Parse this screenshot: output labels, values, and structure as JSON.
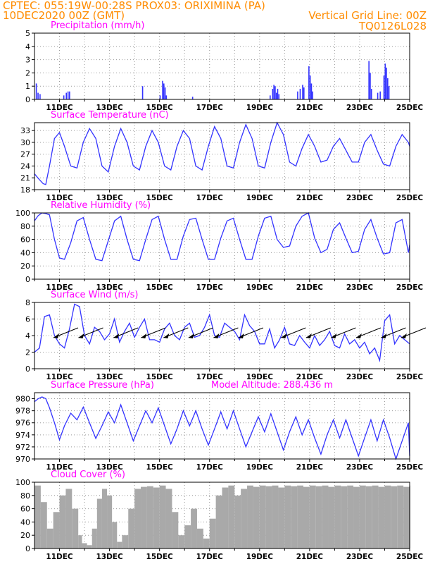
{
  "header": {
    "line1": "CPTEC:   055:19W-00:28S   PROX03: ORIXIMINA (PA)",
    "line2_left": "10DEC2020 00Z (GMT)",
    "line2_right": "Vertical Grid Line: 00Z",
    "line3_right": "TQ0126L028"
  },
  "colors": {
    "series": "#3333ff",
    "header": "#ff8c00",
    "title": "#ff00ff",
    "cloud": "#a9a9a9",
    "arrow": "#000000"
  },
  "chart_data": [
    {
      "type": "bar",
      "title": "Precipitation (mm/h)",
      "x_ticks": [
        "11DEC",
        "13DEC",
        "15DEC",
        "17DEC",
        "19DEC",
        "21DEC",
        "23DEC",
        "25DEC"
      ],
      "xlim": [
        0,
        15
      ],
      "ylim": [
        0,
        5
      ],
      "y_ticks": [
        0,
        1,
        2,
        3,
        4,
        5
      ],
      "values": [
        [
          0.05,
          1.2
        ],
        [
          0.12,
          0.5
        ],
        [
          0.2,
          0.4
        ],
        [
          1.15,
          0.3
        ],
        [
          1.25,
          0.5
        ],
        [
          1.32,
          0.6
        ],
        [
          1.38,
          0.6
        ],
        [
          4.3,
          1.0
        ],
        [
          5.0,
          0.3
        ],
        [
          5.1,
          1.4
        ],
        [
          5.15,
          1.2
        ],
        [
          5.2,
          0.9
        ],
        [
          5.25,
          0.3
        ],
        [
          6.3,
          0.2
        ],
        [
          9.4,
          0.3
        ],
        [
          9.5,
          0.8
        ],
        [
          9.55,
          1.1
        ],
        [
          9.6,
          1.0
        ],
        [
          9.65,
          0.5
        ],
        [
          9.7,
          0.8
        ],
        [
          9.75,
          0.4
        ],
        [
          10.5,
          0.6
        ],
        [
          10.6,
          0.8
        ],
        [
          10.7,
          1.1
        ],
        [
          10.75,
          0.9
        ],
        [
          10.95,
          2.5
        ],
        [
          11.0,
          1.8
        ],
        [
          11.05,
          1.2
        ],
        [
          11.1,
          0.6
        ],
        [
          13.35,
          2.9
        ],
        [
          13.4,
          2.0
        ],
        [
          13.45,
          0.8
        ],
        [
          13.7,
          0.5
        ],
        [
          13.8,
          0.6
        ],
        [
          13.95,
          1.8
        ],
        [
          14.0,
          2.7
        ],
        [
          14.05,
          2.4
        ],
        [
          14.1,
          1.6
        ],
        [
          14.15,
          1.0
        ]
      ]
    },
    {
      "type": "line",
      "title": "Surface Temperature (nC)",
      "x_ticks": [
        "11DEC",
        "13DEC",
        "15DEC",
        "17DEC",
        "19DEC",
        "21DEC",
        "23DEC",
        "25DEC"
      ],
      "xlim": [
        0,
        15
      ],
      "ylim": [
        18,
        35
      ],
      "y_ticks": [
        18,
        21,
        24,
        27,
        30,
        33
      ],
      "x": [
        0,
        0.2,
        0.35,
        0.45,
        0.6,
        0.8,
        1.0,
        1.2,
        1.45,
        1.7,
        1.95,
        2.2,
        2.45,
        2.7,
        2.95,
        3.2,
        3.45,
        3.7,
        3.95,
        4.2,
        4.45,
        4.7,
        4.95,
        5.2,
        5.45,
        5.7,
        5.95,
        6.2,
        6.45,
        6.7,
        6.95,
        7.2,
        7.45,
        7.7,
        7.95,
        8.2,
        8.45,
        8.7,
        8.95,
        9.2,
        9.45,
        9.7,
        9.95,
        10.2,
        10.45,
        10.7,
        10.95,
        11.2,
        11.45,
        11.7,
        11.95,
        12.2,
        12.45,
        12.7,
        12.95,
        13.2,
        13.45,
        13.7,
        13.95,
        14.2,
        14.45,
        14.7,
        14.95,
        15.0
      ],
      "values": [
        22,
        20.5,
        19.5,
        19.3,
        24,
        31,
        32.5,
        29,
        24,
        23.5,
        30,
        33.5,
        31,
        24,
        22.5,
        29,
        33.5,
        30,
        24,
        23,
        29,
        33,
        30,
        24,
        23,
        29,
        33,
        31,
        24,
        23,
        29,
        34,
        31,
        24,
        23.5,
        30,
        34.5,
        31,
        24,
        23.5,
        30,
        35,
        32,
        25,
        24,
        28.5,
        32,
        29,
        25,
        25.5,
        29,
        31,
        28,
        25,
        25,
        30,
        32,
        28,
        24.5,
        24,
        29,
        32,
        30,
        29
      ]
    },
    {
      "type": "line",
      "title": "Relative Humidity (%)",
      "x_ticks": [
        "11DEC",
        "13DEC",
        "15DEC",
        "17DEC",
        "19DEC",
        "21DEC",
        "23DEC",
        "25DEC"
      ],
      "xlim": [
        0,
        15
      ],
      "ylim": [
        0,
        100
      ],
      "y_ticks": [
        0,
        20,
        40,
        60,
        80,
        100
      ],
      "x": [
        0,
        0.15,
        0.3,
        0.45,
        0.6,
        0.8,
        1.0,
        1.2,
        1.45,
        1.7,
        1.95,
        2.2,
        2.45,
        2.7,
        2.95,
        3.2,
        3.45,
        3.7,
        3.95,
        4.2,
        4.45,
        4.7,
        4.95,
        5.2,
        5.45,
        5.7,
        5.95,
        6.2,
        6.45,
        6.7,
        6.95,
        7.2,
        7.45,
        7.7,
        7.95,
        8.2,
        8.45,
        8.7,
        8.95,
        9.2,
        9.45,
        9.7,
        9.95,
        10.2,
        10.45,
        10.7,
        10.95,
        11.2,
        11.45,
        11.7,
        11.95,
        12.2,
        12.45,
        12.7,
        12.95,
        13.2,
        13.45,
        13.7,
        13.95,
        14.2,
        14.45,
        14.7,
        14.95,
        15.0
      ],
      "values": [
        88,
        96,
        100,
        99,
        97,
        60,
        32,
        30,
        55,
        88,
        93,
        60,
        30,
        28,
        58,
        88,
        95,
        60,
        30,
        28,
        60,
        90,
        95,
        60,
        30,
        30,
        65,
        90,
        92,
        60,
        30,
        30,
        62,
        88,
        92,
        60,
        30,
        30,
        65,
        92,
        95,
        60,
        48,
        50,
        80,
        95,
        100,
        62,
        40,
        45,
        75,
        85,
        62,
        40,
        42,
        75,
        90,
        62,
        38,
        40,
        85,
        90,
        40,
        52
      ]
    },
    {
      "type": "line",
      "title": "Surface Wind (m/s)",
      "x_ticks": [
        "11DEC",
        "13DEC",
        "15DEC",
        "17DEC",
        "19DEC",
        "21DEC",
        "23DEC",
        "25DEC"
      ],
      "xlim": [
        0,
        15
      ],
      "ylim": [
        0,
        8
      ],
      "y_ticks": [
        0,
        2,
        4,
        6,
        8
      ],
      "x": [
        0,
        0.2,
        0.4,
        0.6,
        0.8,
        1.0,
        1.2,
        1.4,
        1.6,
        1.8,
        2.0,
        2.2,
        2.4,
        2.6,
        2.8,
        3.0,
        3.2,
        3.4,
        3.6,
        3.8,
        4.0,
        4.2,
        4.4,
        4.6,
        4.8,
        5.0,
        5.2,
        5.4,
        5.6,
        5.8,
        6.0,
        6.2,
        6.4,
        6.6,
        6.8,
        7.0,
        7.2,
        7.4,
        7.6,
        7.8,
        8.0,
        8.2,
        8.4,
        8.6,
        8.8,
        9.0,
        9.2,
        9.4,
        9.6,
        9.8,
        10.0,
        10.2,
        10.4,
        10.6,
        10.8,
        11.0,
        11.2,
        11.4,
        11.6,
        11.8,
        12.0,
        12.2,
        12.4,
        12.6,
        12.8,
        13.0,
        13.2,
        13.4,
        13.6,
        13.8,
        14.0,
        14.2,
        14.4,
        14.6,
        14.8,
        15.0
      ],
      "values": [
        2.0,
        2.5,
        6.3,
        6.5,
        4.0,
        3.0,
        2.5,
        4.8,
        7.8,
        7.5,
        4.0,
        3.0,
        5.0,
        4.5,
        3.5,
        4.2,
        6.0,
        3.2,
        4.5,
        5.5,
        3.8,
        5.0,
        6.0,
        3.5,
        3.5,
        3.2,
        4.8,
        5.5,
        4.0,
        3.5,
        5.0,
        5.5,
        3.8,
        4.0,
        5.0,
        6.5,
        4.0,
        3.8,
        5.5,
        5.0,
        4.5,
        3.5,
        6.5,
        5.2,
        4.5,
        3.0,
        3.0,
        4.8,
        2.5,
        3.5,
        5.0,
        3.0,
        2.8,
        4.0,
        3.2,
        2.5,
        4.0,
        2.8,
        3.5,
        4.5,
        2.8,
        2.5,
        4.2,
        3.0,
        3.5,
        2.5,
        3.2,
        1.8,
        2.5,
        1.0,
        5.8,
        6.5,
        3.0,
        4.0,
        3.5,
        3.0
      ],
      "arrow_x": [
        0.9,
        1.9,
        3.3,
        4.4,
        5.3,
        6.3,
        7.3,
        8.3,
        10.0,
        11.0,
        12.0,
        13.0,
        14.0,
        14.8
      ]
    },
    {
      "type": "line",
      "title": "Surface Pressure (hPa)",
      "annotation": "Model Altitude: 288.436  m",
      "x_ticks": [
        "11DEC",
        "13DEC",
        "15DEC",
        "17DEC",
        "19DEC",
        "21DEC",
        "23DEC",
        "25DEC"
      ],
      "xlim": [
        0,
        15
      ],
      "ylim": [
        970,
        981
      ],
      "y_ticks": [
        970,
        972,
        974,
        976,
        978,
        980
      ],
      "x": [
        0,
        0.15,
        0.3,
        0.45,
        0.6,
        0.8,
        1.0,
        1.2,
        1.45,
        1.7,
        1.95,
        2.2,
        2.45,
        2.7,
        2.95,
        3.2,
        3.45,
        3.7,
        3.95,
        4.2,
        4.45,
        4.7,
        4.95,
        5.2,
        5.45,
        5.7,
        5.95,
        6.2,
        6.45,
        6.7,
        6.95,
        7.2,
        7.45,
        7.7,
        7.95,
        8.2,
        8.45,
        8.7,
        8.95,
        9.2,
        9.45,
        9.7,
        9.95,
        10.2,
        10.45,
        10.7,
        10.95,
        11.2,
        11.45,
        11.7,
        11.95,
        12.2,
        12.45,
        12.7,
        12.95,
        13.2,
        13.45,
        13.7,
        13.95,
        14.2,
        14.45,
        14.7,
        14.95,
        15.0
      ],
      "values": [
        979.5,
        980,
        980.3,
        980,
        978.5,
        976,
        973.2,
        975.5,
        977.6,
        976.5,
        978.6,
        976,
        973.4,
        975.5,
        977.8,
        976,
        979,
        976,
        973,
        975.5,
        978,
        976,
        978.5,
        975.5,
        972.5,
        975,
        978,
        975.5,
        978,
        975,
        972.3,
        975,
        977.8,
        975,
        978,
        975,
        972,
        974.5,
        977,
        974.5,
        977.5,
        974.5,
        971.5,
        974.5,
        977,
        974,
        976.5,
        973.5,
        970.8,
        974,
        976.5,
        973.5,
        976.5,
        973.5,
        970.5,
        973.5,
        976.5,
        973,
        976.5,
        973.5,
        970,
        973,
        976,
        970.5
      ]
    },
    {
      "type": "bar",
      "title": "Cloud Cover (%)",
      "x_ticks": [
        "11DEC",
        "13DEC",
        "15DEC",
        "17DEC",
        "19DEC",
        "21DEC",
        "23DEC",
        "25DEC"
      ],
      "xlim": [
        0,
        15
      ],
      "ylim": [
        0,
        100
      ],
      "y_ticks": [
        0,
        20,
        40,
        60,
        80,
        100
      ],
      "x": [
        0,
        0.25,
        0.5,
        0.75,
        1.0,
        1.25,
        1.5,
        1.75,
        1.9,
        2.1,
        2.3,
        2.5,
        2.7,
        2.9,
        3.1,
        3.3,
        3.5,
        3.75,
        4.0,
        4.25,
        4.5,
        4.75,
        5.0,
        5.25,
        5.5,
        5.75,
        6.0,
        6.25,
        6.5,
        6.75,
        7.0,
        7.25,
        7.5,
        7.75,
        8.0,
        8.25,
        8.5,
        8.75,
        9.0,
        9.25,
        9.5,
        9.75,
        10.0,
        10.25,
        10.5,
        10.75,
        11.0,
        11.25,
        11.5,
        11.75,
        12.0,
        12.25,
        12.5,
        12.75,
        13.0,
        13.25,
        13.5,
        13.75,
        14.0,
        14.25,
        14.5,
        14.75,
        15.0
      ],
      "values": [
        95,
        70,
        30,
        55,
        80,
        90,
        60,
        20,
        8,
        5,
        30,
        75,
        90,
        80,
        40,
        10,
        20,
        60,
        90,
        93,
        94,
        92,
        95,
        90,
        55,
        20,
        35,
        60,
        30,
        15,
        45,
        80,
        92,
        95,
        80,
        90,
        95,
        93,
        95,
        94,
        95,
        92,
        95,
        94,
        95,
        93,
        95,
        94,
        95,
        93,
        95,
        94,
        95,
        93,
        95,
        94,
        95,
        93,
        95,
        94,
        95,
        93,
        95
      ]
    }
  ]
}
